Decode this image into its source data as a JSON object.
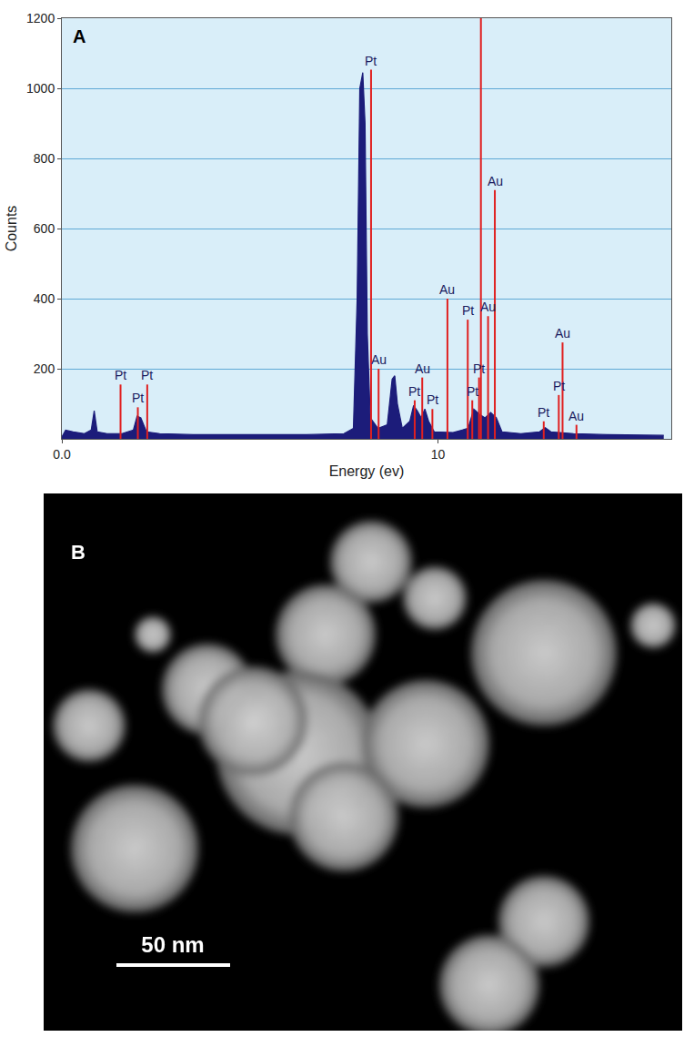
{
  "chart_data": {
    "type": "area",
    "panel_label": "A",
    "x_label": "Energy (ev)",
    "y_label": "Counts",
    "x": [
      0.0,
      0.1,
      0.3,
      0.6,
      0.78,
      0.86,
      0.94,
      1.2,
      1.6,
      1.9,
      2.0,
      2.1,
      2.25,
      2.6,
      3.5,
      4.5,
      5.5,
      6.5,
      7.5,
      7.75,
      7.85,
      7.92,
      8.0,
      8.06,
      8.12,
      8.2,
      8.4,
      8.65,
      8.78,
      8.85,
      8.92,
      9.05,
      9.25,
      9.35,
      9.45,
      9.55,
      9.65,
      9.75,
      9.9,
      10.4,
      10.8,
      10.95,
      11.1,
      11.25,
      11.4,
      11.55,
      11.7,
      12.2,
      12.7,
      12.85,
      13.0,
      13.6,
      14.5,
      16.0
    ],
    "values": [
      5,
      25,
      20,
      15,
      25,
      80,
      20,
      15,
      15,
      25,
      65,
      60,
      20,
      15,
      12,
      12,
      12,
      12,
      15,
      30,
      400,
      1000,
      1045,
      900,
      300,
      60,
      30,
      40,
      170,
      180,
      100,
      30,
      50,
      95,
      80,
      60,
      85,
      50,
      20,
      18,
      30,
      85,
      70,
      60,
      75,
      60,
      20,
      15,
      20,
      32,
      20,
      15,
      12,
      10
    ],
    "color": "#1c1c7a",
    "xlim": [
      0,
      16.2
    ],
    "xticks": [
      {
        "value": 0,
        "label": "0.0"
      },
      10
    ],
    "ylim": [
      0,
      1200
    ],
    "yticks": [
      200,
      400,
      600,
      800,
      1000,
      1200
    ],
    "grid": true,
    "element_lines": {
      "color": "#e02020",
      "lines": [
        {
          "label": "Pt",
          "x": 1.56,
          "value": 155
        },
        {
          "label": "Pt",
          "x": 2.02,
          "value": 90
        },
        {
          "label": "Pt",
          "x": 2.27,
          "value": 155
        },
        {
          "label": "Pt",
          "x": 8.22,
          "value": 1053
        },
        {
          "label": "Au",
          "x": 8.42,
          "value": 200
        },
        {
          "label": "Pt",
          "x": 9.38,
          "value": 110
        },
        {
          "label": "Au",
          "x": 9.58,
          "value": 175
        },
        {
          "label": "Pt",
          "x": 9.85,
          "value": 85
        },
        {
          "label": "Au",
          "x": 10.25,
          "value": 400
        },
        {
          "label": "Pt",
          "x": 10.79,
          "value": 340
        },
        {
          "label": "Pt",
          "x": 10.91,
          "value": 110
        },
        {
          "label": "Pt",
          "x": 11.09,
          "value": 175
        },
        {
          "x": 11.14,
          "value": 1250
        },
        {
          "label": "Au",
          "x": 11.33,
          "value": 350
        },
        {
          "label": "Au",
          "x": 11.51,
          "value": 710
        },
        {
          "label": "Pt",
          "x": 12.81,
          "value": 50
        },
        {
          "label": "Pt",
          "x": 13.21,
          "value": 125
        },
        {
          "label": "Au",
          "x": 13.31,
          "value": 275
        },
        {
          "label": "Au",
          "x": 13.68,
          "value": 40
        }
      ]
    }
  },
  "image": {
    "panel_label": "B",
    "scale_bar": "50 nm"
  }
}
